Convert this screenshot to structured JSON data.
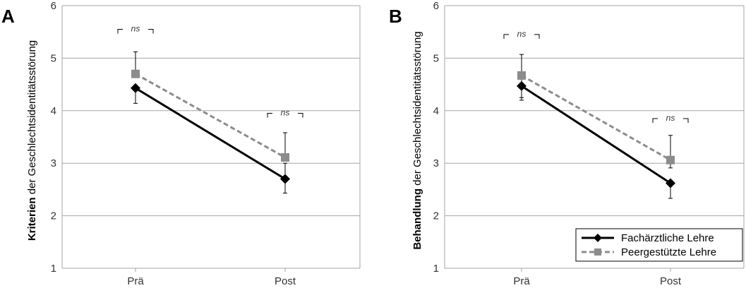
{
  "chart_data": [
    {
      "type": "line",
      "panel_label": "A",
      "ylabel_bold": "Kriterien",
      "ylabel_rest": " der Geschlechtsidentitätsstörung",
      "categories": [
        "Prä",
        "Post"
      ],
      "ylim": [
        1,
        6
      ],
      "yticks": [
        1,
        2,
        3,
        4,
        5,
        6
      ],
      "grid": true,
      "series": [
        {
          "name": "Fachärztliche Lehre",
          "values": [
            4.43,
            2.7
          ],
          "err_low": [
            4.14,
            2.43
          ],
          "err_high": [
            4.43,
            3.0
          ],
          "color": "#000000",
          "style": "solid",
          "marker": "diamond"
        },
        {
          "name": "Peergestützte Lehre",
          "values": [
            4.7,
            3.11
          ],
          "err_low": [
            4.7,
            3.11
          ],
          "err_high": [
            5.12,
            3.58
          ],
          "color": "#8c8c8c",
          "style": "dashed",
          "marker": "square"
        }
      ],
      "annotations": [
        {
          "category": "Prä",
          "text": "ns",
          "y": 5.55
        },
        {
          "category": "Post",
          "text": "ns",
          "y": 3.95
        }
      ],
      "legend": false
    },
    {
      "type": "line",
      "panel_label": "B",
      "ylabel_bold": "Behandlung",
      "ylabel_rest": " der Geschlechtsidentitätsstörung",
      "categories": [
        "Prä",
        "Post"
      ],
      "ylim": [
        1,
        6
      ],
      "yticks": [
        1,
        2,
        3,
        4,
        5,
        6
      ],
      "grid": true,
      "series": [
        {
          "name": "Fachärztliche Lehre",
          "values": [
            4.47,
            2.62
          ],
          "err_low": [
            4.2,
            2.33
          ],
          "err_high": [
            4.47,
            2.62
          ],
          "color": "#000000",
          "style": "solid",
          "marker": "diamond"
        },
        {
          "name": "Peergestützte Lehre",
          "values": [
            4.67,
            3.06
          ],
          "err_low": [
            4.25,
            2.91
          ],
          "err_high": [
            5.07,
            3.53
          ],
          "color": "#8c8c8c",
          "style": "dashed",
          "marker": "square"
        }
      ],
      "annotations": [
        {
          "category": "Prä",
          "text": "ns",
          "y": 5.45
        },
        {
          "category": "Post",
          "text": "ns",
          "y": 3.85
        }
      ],
      "legend": true,
      "legend_position": "bottom-right"
    }
  ]
}
